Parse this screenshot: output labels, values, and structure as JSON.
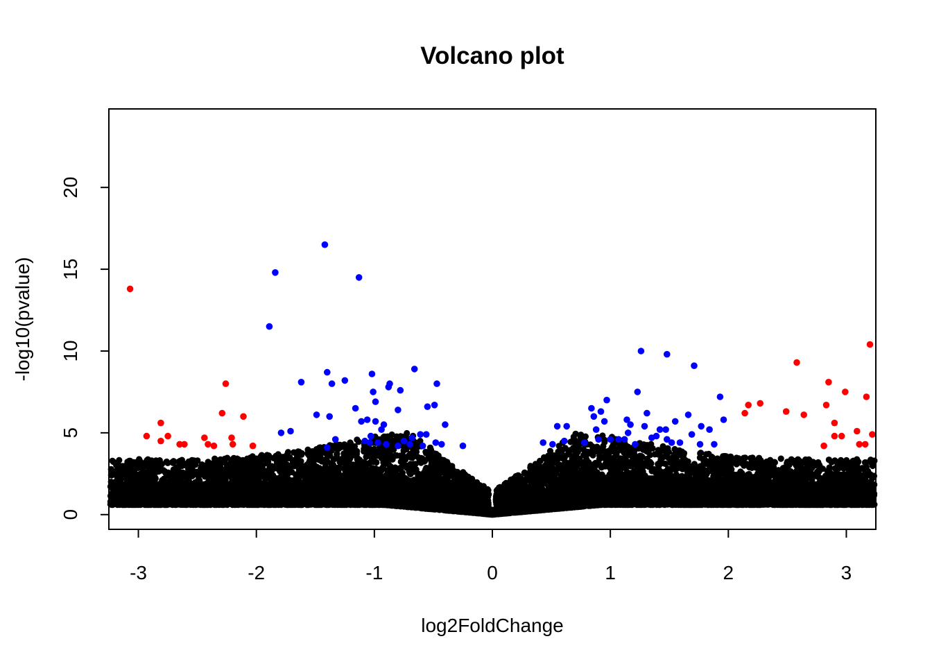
{
  "chart_data": {
    "type": "scatter",
    "title": "Volcano plot",
    "xlabel": "log2FoldChange",
    "ylabel": "-log10(pvalue)",
    "xlim": [
      -3.25,
      3.25
    ],
    "ylim": [
      -0.9,
      24.8
    ],
    "x_ticks": [
      -3,
      -2,
      -1,
      0,
      1,
      2,
      3
    ],
    "y_ticks": [
      0,
      5,
      10,
      15,
      20
    ],
    "grid": false,
    "legend": "none",
    "colors": {
      "not_significant": "#000000",
      "significant": "#0000FF",
      "significant_large_fc": "#FF0000"
    },
    "background_cloud": {
      "color": "#000000",
      "description_max_y_near_fc_abs_3": 4,
      "min_y_near_zero_fc": 0
    },
    "series": [
      {
        "color": "#0000FF",
        "points": [
          [
            -1.42,
            16.5
          ],
          [
            -1.84,
            14.8
          ],
          [
            -1.13,
            14.5
          ],
          [
            -1.89,
            11.5
          ],
          [
            -0.66,
            8.9
          ],
          [
            -1.4,
            8.7
          ],
          [
            -1.02,
            8.6
          ],
          [
            -1.25,
            8.2
          ],
          [
            -1.36,
            8.0
          ],
          [
            -1.62,
            8.1
          ],
          [
            -0.87,
            8.0
          ],
          [
            -0.47,
            8.0
          ],
          [
            -0.78,
            7.6
          ],
          [
            -1.01,
            7.5
          ],
          [
            -0.88,
            7.8
          ],
          [
            -0.99,
            6.9
          ],
          [
            -0.8,
            6.4
          ],
          [
            -1.16,
            6.5
          ],
          [
            -0.55,
            6.6
          ],
          [
            -0.49,
            6.7
          ],
          [
            -1.49,
            6.1
          ],
          [
            -1.38,
            6.0
          ],
          [
            -1.06,
            5.8
          ],
          [
            -1.11,
            5.7
          ],
          [
            -0.99,
            5.7
          ],
          [
            -0.92,
            5.5
          ],
          [
            -0.4,
            5.5
          ],
          [
            -1.79,
            5.0
          ],
          [
            -1.71,
            5.1
          ],
          [
            -0.94,
            5.2
          ],
          [
            -1.03,
            4.8
          ],
          [
            -0.56,
            4.9
          ],
          [
            -0.61,
            4.9
          ],
          [
            -0.68,
            4.7
          ],
          [
            -1.33,
            4.6
          ],
          [
            -1.04,
            4.4
          ],
          [
            -0.97,
            4.4
          ],
          [
            -0.9,
            4.3
          ],
          [
            -0.8,
            4.2
          ],
          [
            -0.7,
            4.3
          ],
          [
            -0.48,
            4.4
          ],
          [
            -0.43,
            4.3
          ],
          [
            -1.4,
            4.1
          ],
          [
            -0.59,
            4.2
          ],
          [
            -0.25,
            4.2
          ],
          [
            -1.08,
            4.5
          ],
          [
            -0.75,
            4.5
          ],
          [
            1.26,
            10.0
          ],
          [
            1.48,
            9.8
          ],
          [
            1.71,
            9.1
          ],
          [
            1.23,
            7.5
          ],
          [
            1.93,
            7.2
          ],
          [
            0.97,
            7.0
          ],
          [
            0.84,
            6.5
          ],
          [
            0.92,
            6.3
          ],
          [
            1.31,
            6.2
          ],
          [
            1.66,
            6.1
          ],
          [
            0.86,
            6.0
          ],
          [
            0.95,
            5.7
          ],
          [
            1.14,
            5.8
          ],
          [
            1.96,
            5.8
          ],
          [
            1.17,
            5.5
          ],
          [
            1.29,
            5.4
          ],
          [
            1.47,
            5.2
          ],
          [
            1.55,
            5.7
          ],
          [
            1.77,
            5.4
          ],
          [
            0.55,
            5.4
          ],
          [
            0.63,
            5.4
          ],
          [
            0.88,
            5.2
          ],
          [
            1.84,
            5.2
          ],
          [
            1.42,
            5.2
          ],
          [
            1.15,
            5.0
          ],
          [
            1.35,
            4.7
          ],
          [
            1.48,
            4.6
          ],
          [
            1.69,
            4.9
          ],
          [
            0.9,
            4.6
          ],
          [
            1.0,
            4.6
          ],
          [
            1.07,
            4.6
          ],
          [
            1.21,
            4.3
          ],
          [
            1.59,
            4.4
          ],
          [
            1.76,
            4.3
          ],
          [
            1.88,
            4.3
          ],
          [
            0.43,
            4.4
          ],
          [
            0.51,
            4.3
          ],
          [
            0.61,
            4.5
          ],
          [
            0.78,
            4.4
          ],
          [
            1.39,
            4.8
          ],
          [
            1.52,
            4.4
          ],
          [
            1.12,
            4.6
          ]
        ]
      },
      {
        "color": "#FF0000",
        "points": [
          [
            -3.07,
            13.8
          ],
          [
            -2.26,
            8.0
          ],
          [
            -2.29,
            6.2
          ],
          [
            -2.11,
            6.0
          ],
          [
            -2.81,
            5.6
          ],
          [
            -2.93,
            4.8
          ],
          [
            -2.75,
            4.8
          ],
          [
            -2.44,
            4.7
          ],
          [
            -2.21,
            4.7
          ],
          [
            -2.81,
            4.5
          ],
          [
            -2.41,
            4.3
          ],
          [
            -2.36,
            4.2
          ],
          [
            -2.2,
            4.3
          ],
          [
            -2.03,
            4.2
          ],
          [
            -2.65,
            4.3
          ],
          [
            -2.61,
            4.3
          ],
          [
            3.2,
            10.4
          ],
          [
            2.58,
            9.3
          ],
          [
            2.85,
            8.1
          ],
          [
            2.99,
            7.5
          ],
          [
            3.17,
            7.2
          ],
          [
            2.27,
            6.8
          ],
          [
            2.17,
            6.7
          ],
          [
            2.83,
            6.7
          ],
          [
            2.49,
            6.3
          ],
          [
            2.14,
            6.2
          ],
          [
            2.64,
            6.1
          ],
          [
            2.9,
            5.6
          ],
          [
            3.09,
            5.1
          ],
          [
            3.22,
            4.9
          ],
          [
            2.9,
            4.8
          ],
          [
            2.96,
            4.8
          ],
          [
            3.11,
            4.3
          ],
          [
            3.16,
            4.3
          ],
          [
            2.81,
            4.2
          ]
        ]
      }
    ]
  }
}
